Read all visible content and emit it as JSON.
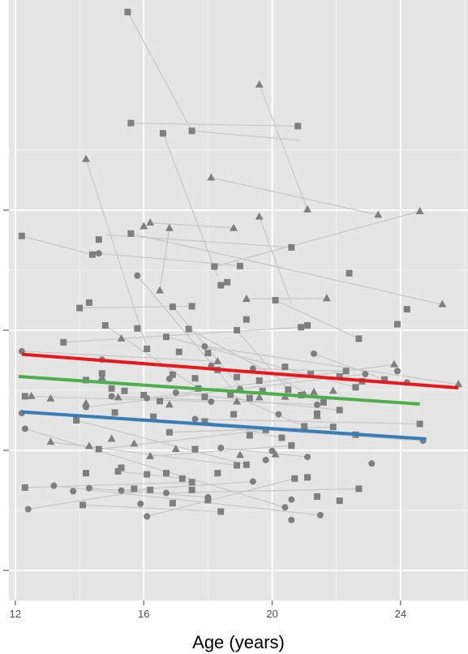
{
  "chart_data": {
    "type": "scatter",
    "title": "",
    "xlabel": "Age (years)",
    "ylabel": "",
    "xlim": [
      11.8,
      26.1
    ],
    "ylim": [
      0,
      100
    ],
    "x_ticks": [
      12,
      16,
      20,
      24
    ],
    "x_tick_labels": [
      "12",
      "16",
      "20",
      "24"
    ],
    "y_ticks": [
      5,
      25,
      45,
      65
    ],
    "y_tick_labels": [
      "",
      "",
      "",
      ""
    ],
    "grid": true,
    "legend": "none",
    "colors": {
      "panel": "#e5e5e5",
      "grid_major": "#ffffff",
      "grid_minor": "#f2f2f2",
      "points": "#7f7f7f",
      "connectors": "#c8c8c8",
      "fit_red": "#e41a1c",
      "fit_green": "#4daf4a",
      "fit_blue": "#377eb8"
    },
    "fit_lines": [
      {
        "color": "#e41a1c",
        "x": [
          12.2,
          25.8
        ],
        "y": [
          41.0,
          35.4
        ]
      },
      {
        "color": "#4daf4a",
        "x": [
          12.1,
          24.6
        ],
        "y": [
          37.3,
          32.7
        ]
      },
      {
        "color": "#377eb8",
        "x": [
          12.2,
          24.8
        ],
        "y": [
          31.4,
          26.9
        ]
      }
    ],
    "series": [
      {
        "shape": "square",
        "points": [
          [
            15.5,
            98.0
          ],
          [
            17.5,
            78.2
          ],
          [
            20.8,
            79.0
          ],
          [
            15.6,
            79.5
          ],
          [
            16.6,
            77.8
          ],
          [
            12.2,
            60.7
          ],
          [
            14.6,
            60.1
          ],
          [
            15.6,
            61.1
          ],
          [
            20.6,
            58.8
          ],
          [
            14.4,
            57.6
          ],
          [
            14.3,
            49.6
          ],
          [
            14.0,
            48.7
          ],
          [
            17.5,
            49.0
          ],
          [
            16.9,
            48.9
          ],
          [
            14.8,
            45.8
          ],
          [
            15.8,
            45.3
          ],
          [
            13.5,
            43.0
          ],
          [
            18.9,
            45.0
          ],
          [
            20.1,
            50.0
          ],
          [
            20.9,
            45.5
          ],
          [
            22.7,
            43.6
          ],
          [
            23.9,
            46.0
          ],
          [
            24.2,
            48.5
          ],
          [
            16.7,
            43.9
          ],
          [
            17.4,
            45.2
          ],
          [
            18.4,
            52.5
          ],
          [
            18.6,
            53.0
          ],
          [
            18.2,
            55.6
          ],
          [
            19.0,
            55.7
          ],
          [
            22.4,
            54.5
          ],
          [
            19.2,
            46.8
          ],
          [
            21.1,
            45.8
          ],
          [
            16.1,
            41.9
          ],
          [
            17.1,
            41.4
          ],
          [
            18.0,
            41.2
          ],
          [
            18.3,
            38.4
          ],
          [
            17.6,
            37.0
          ],
          [
            16.9,
            37.6
          ],
          [
            18.9,
            37.2
          ],
          [
            19.6,
            36.6
          ],
          [
            20.4,
            38.9
          ],
          [
            21.2,
            37.7
          ],
          [
            22.1,
            37.3
          ],
          [
            22.3,
            38.2
          ],
          [
            22.8,
            36.5
          ],
          [
            23.5,
            36.8
          ],
          [
            14.2,
            36.7
          ],
          [
            14.7,
            37.8
          ],
          [
            15.0,
            35.3
          ],
          [
            15.4,
            34.9
          ],
          [
            16.0,
            34.2
          ],
          [
            16.5,
            33.2
          ],
          [
            16.3,
            30.6
          ],
          [
            17.7,
            35.3
          ],
          [
            17.9,
            33.9
          ],
          [
            18.7,
            34.3
          ],
          [
            19.3,
            33.7
          ],
          [
            19.7,
            34.9
          ],
          [
            20.5,
            35.1
          ],
          [
            20.9,
            34.2
          ],
          [
            21.4,
            31.1
          ],
          [
            21.6,
            33.0
          ],
          [
            22.1,
            31.7
          ],
          [
            22.6,
            35.5
          ],
          [
            15.1,
            31.3
          ],
          [
            13.9,
            30.0
          ],
          [
            12.3,
            34.0
          ],
          [
            16.8,
            28.0
          ],
          [
            17.9,
            29.8
          ],
          [
            18.8,
            31.0
          ],
          [
            19.8,
            28.4
          ],
          [
            20.3,
            27.1
          ],
          [
            21.0,
            29.0
          ],
          [
            21.9,
            28.9
          ],
          [
            22.6,
            27.6
          ],
          [
            24.6,
            29.4
          ],
          [
            14.6,
            25.2
          ],
          [
            15.3,
            22.1
          ],
          [
            15.2,
            21.5
          ],
          [
            14.2,
            21.2
          ],
          [
            17.6,
            25.2
          ],
          [
            18.9,
            22.5
          ],
          [
            19.2,
            22.6
          ],
          [
            20.6,
            25.8
          ],
          [
            16.7,
            21.2
          ],
          [
            17.2,
            20.3
          ],
          [
            18.3,
            21.2
          ],
          [
            12.3,
            18.8
          ],
          [
            15.7,
            18.6
          ],
          [
            16.2,
            18.4
          ],
          [
            17.5,
            19.7
          ],
          [
            16.9,
            16.2
          ],
          [
            17.5,
            18.4
          ],
          [
            20.7,
            20.3
          ],
          [
            21.1,
            20.5
          ],
          [
            22.7,
            18.6
          ],
          [
            22.1,
            16.6
          ],
          [
            21.4,
            17.3
          ],
          [
            14.1,
            15.9
          ],
          [
            18.4,
            14.8
          ],
          [
            18.0,
            16.7
          ],
          [
            16.1,
            21.0
          ],
          [
            19.3,
            27.5
          ]
        ]
      },
      {
        "shape": "circle",
        "points": [
          [
            14.6,
            57.8
          ],
          [
            15.8,
            54.1
          ],
          [
            12.2,
            41.5
          ],
          [
            14.7,
            40.1
          ],
          [
            17.9,
            42.3
          ],
          [
            12.2,
            31.2
          ],
          [
            12.3,
            28.6
          ],
          [
            14.2,
            32.2
          ],
          [
            15.0,
            34.0
          ],
          [
            16.1,
            33.7
          ],
          [
            17.0,
            34.6
          ],
          [
            18.1,
            33.1
          ],
          [
            19.0,
            35.2
          ],
          [
            20.2,
            31.0
          ],
          [
            21.4,
            32.6
          ],
          [
            22.9,
            37.7
          ],
          [
            23.9,
            38.2
          ],
          [
            24.2,
            36.3
          ],
          [
            24.7,
            26.6
          ],
          [
            21.3,
            41.1
          ],
          [
            19.4,
            38.6
          ],
          [
            17.6,
            30.2
          ],
          [
            18.4,
            25.4
          ],
          [
            19.8,
            23.4
          ],
          [
            20.0,
            24.9
          ],
          [
            21.1,
            23.9
          ],
          [
            23.1,
            22.8
          ],
          [
            13.2,
            19.1
          ],
          [
            13.8,
            18.2
          ],
          [
            14.3,
            18.7
          ],
          [
            15.3,
            18.3
          ],
          [
            16.7,
            17.9
          ],
          [
            18.0,
            17.2
          ],
          [
            19.4,
            19.8
          ],
          [
            20.6,
            16.8
          ],
          [
            12.4,
            15.2
          ],
          [
            15.9,
            16.1
          ],
          [
            16.1,
            14.0
          ],
          [
            20.4,
            15.5
          ],
          [
            21.5,
            14.2
          ],
          [
            20.6,
            13.4
          ],
          [
            16.8,
            36.9
          ],
          [
            18.1,
            39.1
          ]
        ]
      },
      {
        "shape": "triangle",
        "points": [
          [
            19.6,
            85.9
          ],
          [
            14.2,
            73.5
          ],
          [
            18.1,
            70.4
          ],
          [
            21.1,
            65.1
          ],
          [
            23.3,
            64.2
          ],
          [
            24.6,
            64.8
          ],
          [
            25.3,
            49.3
          ],
          [
            19.6,
            63.9
          ],
          [
            16.2,
            62.9
          ],
          [
            16.0,
            62.3
          ],
          [
            16.8,
            62.0
          ],
          [
            18.8,
            62.0
          ],
          [
            21.7,
            50.3
          ],
          [
            19.2,
            50.2
          ],
          [
            16.5,
            51.6
          ],
          [
            18.3,
            39.8
          ],
          [
            15.3,
            43.6
          ],
          [
            14.7,
            37.1
          ],
          [
            12.5,
            34.0
          ],
          [
            13.1,
            33.6
          ],
          [
            14.2,
            32.8
          ],
          [
            15.2,
            33.8
          ],
          [
            16.8,
            32.6
          ],
          [
            18.9,
            33.1
          ],
          [
            19.6,
            33.8
          ],
          [
            20.4,
            33.9
          ],
          [
            21.0,
            34.3
          ],
          [
            21.4,
            30.7
          ],
          [
            21.9,
            34.9
          ],
          [
            23.8,
            39.3
          ],
          [
            25.8,
            36.0
          ],
          [
            13.1,
            26.4
          ],
          [
            15.0,
            26.9
          ],
          [
            15.7,
            26.1
          ],
          [
            14.3,
            25.7
          ],
          [
            17.0,
            25.2
          ],
          [
            19.0,
            24.2
          ],
          [
            20.1,
            24.3
          ],
          [
            16.2,
            24.0
          ],
          [
            21.3,
            34.7
          ]
        ]
      }
    ],
    "connectors": [
      [
        [
          15.5,
          98.0
        ],
        [
          17.5,
          78.2
        ]
      ],
      [
        [
          17.5,
          78.2
        ],
        [
          20.9,
          76.6
        ]
      ],
      [
        [
          19.6,
          85.9
        ],
        [
          21.1,
          65.1
        ]
      ],
      [
        [
          15.6,
          79.5
        ],
        [
          20.8,
          79.0
        ]
      ],
      [
        [
          16.6,
          77.8
        ],
        [
          18.3,
          54.0
        ]
      ],
      [
        [
          14.2,
          73.5
        ],
        [
          16.1,
          42.1
        ]
      ],
      [
        [
          18.1,
          70.4
        ],
        [
          23.3,
          64.2
        ]
      ],
      [
        [
          14.8,
          60.9
        ],
        [
          20.6,
          58.8
        ]
      ],
      [
        [
          15.6,
          61.1
        ],
        [
          25.3,
          49.3
        ]
      ],
      [
        [
          12.2,
          60.7
        ],
        [
          14.4,
          57.6
        ]
      ],
      [
        [
          14.6,
          57.8
        ],
        [
          19.1,
          55.7
        ]
      ],
      [
        [
          18.2,
          55.6
        ],
        [
          24.6,
          64.8
        ]
      ],
      [
        [
          16.2,
          62.9
        ],
        [
          18.9,
          62.0
        ]
      ],
      [
        [
          14.0,
          48.7
        ],
        [
          17.5,
          49.0
        ]
      ],
      [
        [
          20.1,
          50.0
        ],
        [
          22.7,
          43.6
        ]
      ],
      [
        [
          17.9,
          42.3
        ],
        [
          25.8,
          36.0
        ]
      ],
      [
        [
          12.2,
          41.5
        ],
        [
          18.4,
          39.8
        ]
      ],
      [
        [
          13.5,
          43.0
        ],
        [
          20.9,
          45.5
        ]
      ],
      [
        [
          14.7,
          40.1
        ],
        [
          24.2,
          36.3
        ]
      ],
      [
        [
          12.2,
          31.2
        ],
        [
          24.7,
          26.6
        ]
      ],
      [
        [
          12.3,
          28.6
        ],
        [
          20.4,
          15.5
        ]
      ],
      [
        [
          13.2,
          19.1
        ],
        [
          21.5,
          14.2
        ]
      ],
      [
        [
          12.4,
          15.2
        ],
        [
          16.1,
          18.4
        ]
      ],
      [
        [
          16.1,
          14.0
        ],
        [
          20.7,
          20.3
        ]
      ],
      [
        [
          14.2,
          32.2
        ],
        [
          22.9,
          37.7
        ]
      ],
      [
        [
          15.0,
          34.0
        ],
        [
          21.4,
          32.6
        ]
      ],
      [
        [
          16.1,
          33.7
        ],
        [
          23.8,
          39.3
        ]
      ],
      [
        [
          17.0,
          34.6
        ],
        [
          22.1,
          31.7
        ]
      ],
      [
        [
          17.6,
          30.2
        ],
        [
          24.6,
          29.4
        ]
      ],
      [
        [
          18.4,
          25.4
        ],
        [
          21.1,
          23.9
        ]
      ],
      [
        [
          15.3,
          18.3
        ],
        [
          19.4,
          19.8
        ]
      ],
      [
        [
          16.7,
          17.9
        ],
        [
          22.7,
          18.6
        ]
      ],
      [
        [
          14.3,
          18.7
        ],
        [
          18.0,
          17.2
        ]
      ],
      [
        [
          19.6,
          63.9
        ],
        [
          20.6,
          49.3
        ]
      ],
      [
        [
          16.8,
          62.0
        ],
        [
          16.5,
          51.6
        ]
      ],
      [
        [
          19.2,
          50.2
        ],
        [
          21.7,
          50.3
        ]
      ],
      [
        [
          15.8,
          54.1
        ],
        [
          18.8,
          35.0
        ]
      ],
      [
        [
          16.9,
          48.9
        ],
        [
          19.3,
          33.7
        ]
      ],
      [
        [
          17.4,
          45.2
        ],
        [
          21.6,
          33.0
        ]
      ],
      [
        [
          18.9,
          45.0
        ],
        [
          20.5,
          35.1
        ]
      ],
      [
        [
          14.8,
          45.8
        ],
        [
          17.7,
          35.3
        ]
      ],
      [
        [
          16.7,
          43.9
        ],
        [
          22.6,
          35.5
        ]
      ],
      [
        [
          21.3,
          41.1
        ],
        [
          23.5,
          36.8
        ]
      ],
      [
        [
          13.1,
          26.4
        ],
        [
          18.9,
          22.5
        ]
      ],
      [
        [
          14.6,
          25.2
        ],
        [
          19.8,
          28.4
        ]
      ],
      [
        [
          15.2,
          21.5
        ],
        [
          17.2,
          20.3
        ]
      ],
      [
        [
          16.2,
          24.0
        ],
        [
          20.6,
          25.8
        ]
      ],
      [
        [
          12.3,
          18.8
        ],
        [
          17.5,
          19.7
        ]
      ],
      [
        [
          14.1,
          15.9
        ],
        [
          18.4,
          14.8
        ]
      ],
      [
        [
          16.8,
          28.0
        ],
        [
          21.9,
          28.9
        ]
      ],
      [
        [
          17.9,
          29.8
        ],
        [
          20.3,
          27.1
        ]
      ],
      [
        [
          12.3,
          34.0
        ],
        [
          18.1,
          33.1
        ]
      ],
      [
        [
          13.9,
          30.0
        ],
        [
          19.2,
          22.6
        ]
      ],
      [
        [
          18.7,
          34.3
        ],
        [
          21.0,
          29.0
        ]
      ],
      [
        [
          19.4,
          38.6
        ],
        [
          22.3,
          38.2
        ]
      ]
    ]
  }
}
